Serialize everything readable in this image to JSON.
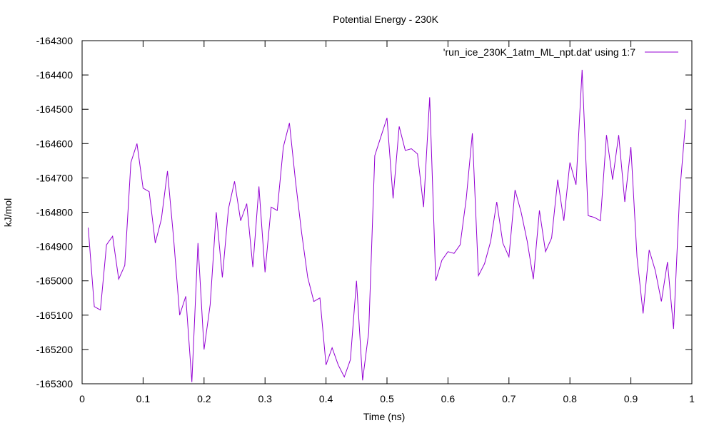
{
  "chart_data": {
    "type": "line",
    "title": "Potential Energy - 230K",
    "xlabel": "Time (ns)",
    "ylabel": "kJ/mol",
    "xlim": [
      0,
      1
    ],
    "ylim": [
      -165300,
      -164300
    ],
    "xticks": [
      0,
      0.1,
      0.2,
      0.3,
      0.4,
      0.5,
      0.6,
      0.7,
      0.8,
      0.9,
      1
    ],
    "xtick_labels": [
      "0",
      "0.1",
      "0.2",
      "0.3",
      "0.4",
      "0.5",
      "0.6",
      "0.7",
      "0.8",
      "0.9",
      "1"
    ],
    "yticks": [
      -165300,
      -165200,
      -165100,
      -165000,
      -164900,
      -164800,
      -164700,
      -164600,
      -164500,
      -164400,
      -164300
    ],
    "ytick_labels": [
      "-165300",
      "-165200",
      "-165100",
      "-165000",
      "-164900",
      "-164800",
      "-164700",
      "-164600",
      "-164500",
      "-164400",
      "-164300"
    ],
    "grid": false,
    "legend_position": "top-right",
    "series": [
      {
        "name": "'run_ice_230K_1atm_ML_npt.dat' using 1:7",
        "color": "#9400d3",
        "x": [
          0.01,
          0.02,
          0.03,
          0.04,
          0.05,
          0.06,
          0.07,
          0.08,
          0.09,
          0.1,
          0.11,
          0.12,
          0.13,
          0.14,
          0.15,
          0.16,
          0.17,
          0.18,
          0.19,
          0.2,
          0.21,
          0.22,
          0.23,
          0.24,
          0.25,
          0.26,
          0.27,
          0.28,
          0.29,
          0.3,
          0.31,
          0.32,
          0.33,
          0.34,
          0.35,
          0.36,
          0.37,
          0.38,
          0.39,
          0.4,
          0.41,
          0.42,
          0.43,
          0.44,
          0.45,
          0.46,
          0.47,
          0.48,
          0.49,
          0.5,
          0.51,
          0.52,
          0.53,
          0.54,
          0.55,
          0.56,
          0.57,
          0.58,
          0.59,
          0.6,
          0.61,
          0.62,
          0.63,
          0.64,
          0.65,
          0.66,
          0.67,
          0.68,
          0.69,
          0.7,
          0.71,
          0.72,
          0.73,
          0.74,
          0.75,
          0.76,
          0.77,
          0.78,
          0.79,
          0.8,
          0.81,
          0.82,
          0.83,
          0.84,
          0.85,
          0.86,
          0.87,
          0.88,
          0.89,
          0.9,
          0.91,
          0.92,
          0.93,
          0.94,
          0.95,
          0.96,
          0.97,
          0.98,
          0.99
        ],
        "y": [
          -164845,
          -165075,
          -165085,
          -164895,
          -164870,
          -164995,
          -164955,
          -164655,
          -164600,
          -164730,
          -164740,
          -164890,
          -164820,
          -164680,
          -164875,
          -165100,
          -165045,
          -165295,
          -164890,
          -165200,
          -165070,
          -164800,
          -164990,
          -164790,
          -164710,
          -164825,
          -164775,
          -164960,
          -164725,
          -164975,
          -164785,
          -164795,
          -164610,
          -164540,
          -164710,
          -164860,
          -164990,
          -165060,
          -165050,
          -165245,
          -165195,
          -165245,
          -165280,
          -165230,
          -165000,
          -165290,
          -165150,
          -164635,
          -164580,
          -164525,
          -164760,
          -164550,
          -164620,
          -164615,
          -164630,
          -164785,
          -164465,
          -165000,
          -164940,
          -164915,
          -164920,
          -164895,
          -164760,
          -164570,
          -164985,
          -164950,
          -164885,
          -164770,
          -164890,
          -164930,
          -164735,
          -164800,
          -164885,
          -164995,
          -164795,
          -164915,
          -164875,
          -164705,
          -164825,
          -164655,
          -164720,
          -164385,
          -164810,
          -164815,
          -164825,
          -164575,
          -164705,
          -164575,
          -164770,
          -164610,
          -164930,
          -165095,
          -164910,
          -164970,
          -165060,
          -164945,
          -165140,
          -164745,
          -164530
        ]
      }
    ]
  }
}
